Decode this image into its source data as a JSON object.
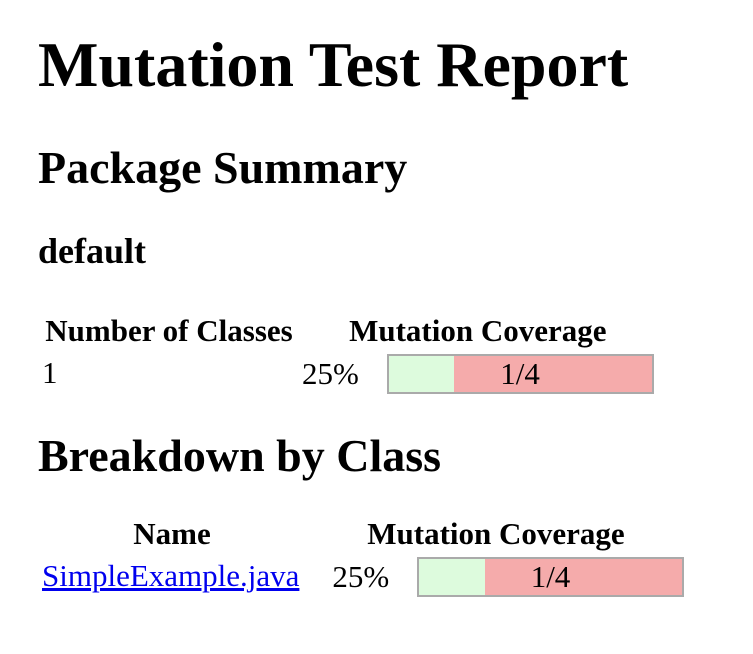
{
  "page": {
    "title": "Mutation Test Report"
  },
  "colors": {
    "covered_green": "#ddfbdd",
    "uncovered_red": "#f5abab",
    "bar_border": "#aaaaaa",
    "link_blue": "#0000ee"
  },
  "package_summary": {
    "heading": "Package Summary",
    "package_name": "default",
    "table": {
      "columns": [
        "Number of Classes",
        "Mutation Coverage"
      ],
      "rows": [
        {
          "number_of_classes": "1",
          "coverage_percent": "25%",
          "coverage_fraction": "1/4",
          "coverage_value": 25
        }
      ]
    }
  },
  "breakdown": {
    "heading": "Breakdown by Class",
    "table": {
      "columns": [
        "Name",
        "Mutation Coverage"
      ],
      "rows": [
        {
          "name": "SimpleExample.java",
          "coverage_percent": "25%",
          "coverage_fraction": "1/4",
          "coverage_value": 25
        }
      ]
    }
  }
}
